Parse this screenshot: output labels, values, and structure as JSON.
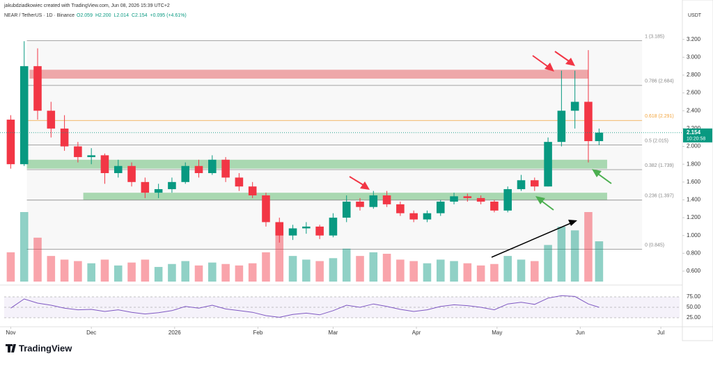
{
  "chart_data": {
    "type": "candlestick",
    "credit": "jakubdziadkowiec created with TradingView.com, Jun 08, 2026 15:39 UTC+2",
    "symbol": "NEAR / TetherUS · 1D · Binance",
    "legend_values": [
      "O2.059",
      "H2.200",
      "L2.014",
      "C2.154",
      "+0.095 (+4.61%)"
    ],
    "currency": "USDT",
    "brand": "TradingView",
    "up_color": "#089981",
    "down_color": "#f23645",
    "x": [
      0,
      5,
      10,
      15,
      20,
      25,
      30,
      35,
      40,
      45,
      50,
      55,
      60,
      65,
      70,
      75,
      80,
      85,
      90,
      95,
      100,
      105,
      110,
      115,
      120,
      125,
      130,
      135,
      140,
      145,
      150,
      155,
      160,
      165,
      170,
      175,
      180,
      185,
      190,
      195,
      200,
      205,
      210,
      215,
      219
    ],
    "open": [
      2.3,
      1.8,
      2.9,
      2.4,
      2.2,
      2.0,
      1.88,
      1.9,
      1.7,
      1.78,
      1.6,
      1.48,
      1.52,
      1.6,
      1.78,
      1.7,
      1.85,
      1.65,
      1.55,
      1.45,
      1.15,
      1.0,
      1.08,
      1.1,
      1.0,
      1.2,
      1.38,
      1.32,
      1.45,
      1.35,
      1.25,
      1.18,
      1.25,
      1.38,
      1.44,
      1.42,
      1.38,
      1.28,
      1.52,
      1.62,
      1.55,
      2.05,
      2.4,
      2.5,
      2.059
    ],
    "high": [
      2.35,
      3.18,
      3.1,
      2.5,
      2.35,
      2.05,
      1.98,
      1.92,
      1.85,
      1.82,
      1.65,
      1.58,
      1.65,
      1.82,
      1.85,
      1.9,
      1.88,
      1.7,
      1.6,
      1.48,
      1.2,
      1.12,
      1.15,
      1.12,
      1.25,
      1.45,
      1.42,
      1.5,
      1.5,
      1.38,
      1.28,
      1.28,
      1.4,
      1.48,
      1.47,
      1.45,
      1.4,
      1.55,
      1.68,
      1.65,
      2.1,
      2.85,
      2.85,
      3.08,
      2.2
    ],
    "low": [
      1.75,
      1.78,
      2.3,
      2.1,
      1.95,
      1.82,
      1.8,
      1.58,
      1.65,
      1.55,
      1.42,
      1.42,
      1.48,
      1.58,
      1.65,
      1.68,
      1.6,
      1.5,
      1.42,
      1.1,
      0.92,
      0.95,
      1.02,
      0.96,
      0.98,
      1.15,
      1.28,
      1.3,
      1.32,
      1.22,
      1.15,
      1.15,
      1.22,
      1.35,
      1.38,
      1.35,
      1.26,
      1.26,
      1.5,
      1.5,
      1.55,
      2.0,
      2.2,
      1.82,
      2.014
    ],
    "close": [
      1.8,
      2.9,
      2.4,
      2.2,
      2.0,
      1.88,
      1.9,
      1.7,
      1.78,
      1.6,
      1.48,
      1.52,
      1.6,
      1.78,
      1.7,
      1.85,
      1.65,
      1.55,
      1.45,
      1.15,
      1.0,
      1.08,
      1.1,
      1.0,
      1.2,
      1.38,
      1.32,
      1.45,
      1.35,
      1.25,
      1.18,
      1.25,
      1.38,
      1.44,
      1.42,
      1.38,
      1.28,
      1.52,
      1.62,
      1.55,
      2.05,
      2.4,
      2.5,
      2.059,
      2.154
    ],
    "volume": [
      40,
      95,
      60,
      35,
      30,
      28,
      25,
      30,
      22,
      26,
      30,
      20,
      24,
      28,
      22,
      26,
      24,
      22,
      25,
      40,
      70,
      35,
      30,
      28,
      32,
      45,
      35,
      40,
      38,
      30,
      28,
      25,
      30,
      28,
      25,
      22,
      24,
      35,
      30,
      28,
      50,
      75,
      70,
      95,
      55
    ],
    "rsi": [
      48,
      70,
      60,
      55,
      48,
      44,
      45,
      40,
      44,
      38,
      34,
      37,
      42,
      52,
      48,
      55,
      46,
      42,
      38,
      30,
      26,
      33,
      36,
      32,
      42,
      55,
      50,
      58,
      52,
      45,
      40,
      44,
      52,
      56,
      54,
      50,
      44,
      58,
      62,
      57,
      72,
      78,
      76,
      58,
      50
    ],
    "xlim": [
      -4,
      250
    ],
    "xticks": [
      {
        "value": 0,
        "label": "Nov"
      },
      {
        "value": 30,
        "label": "Dec"
      },
      {
        "value": 61,
        "label": "2026"
      },
      {
        "value": 92,
        "label": "Feb"
      },
      {
        "value": 120,
        "label": "Mar"
      },
      {
        "value": 151,
        "label": "Apr"
      },
      {
        "value": 181,
        "label": "May"
      },
      {
        "value": 212,
        "label": "Jun"
      },
      {
        "value": 242,
        "label": "Jul"
      }
    ],
    "ylim": [
      0.483,
      3.385
    ],
    "yticks": [
      {
        "value": 0.6,
        "label": "0.600"
      },
      {
        "value": 0.8,
        "label": "0.800"
      },
      {
        "value": 1.0,
        "label": "1.000"
      },
      {
        "value": 1.2,
        "label": "1.200"
      },
      {
        "value": 1.4,
        "label": "1.400"
      },
      {
        "value": 1.6,
        "label": "1.600"
      },
      {
        "value": 1.8,
        "label": "1.800"
      },
      {
        "value": 2.0,
        "label": "2.000"
      },
      {
        "value": 2.2,
        "label": "2.200"
      },
      {
        "value": 2.4,
        "label": "2.400"
      },
      {
        "value": 2.6,
        "label": "2.600"
      },
      {
        "value": 2.8,
        "label": "2.800"
      },
      {
        "value": 3.0,
        "label": "3.000"
      },
      {
        "value": 3.2,
        "label": "3.200"
      }
    ],
    "rsi_ylim": [
      20,
      80
    ],
    "rsi_yticks": [
      {
        "value": 75,
        "label": "75.00"
      },
      {
        "value": 50,
        "label": "50.00"
      },
      {
        "value": 25,
        "label": "25.00"
      }
    ],
    "fib_levels": [
      {
        "value": 3.185,
        "label": "1 (3.185)",
        "color": "#888888"
      },
      {
        "value": 2.684,
        "label": "0.786 (2.684)",
        "color": "#888888"
      },
      {
        "value": 2.291,
        "label": "0.618 (2.291)",
        "color": "#f2a33a"
      },
      {
        "value": 2.015,
        "label": "0.5 (2.015)",
        "color": "#888888"
      },
      {
        "value": 1.739,
        "label": "0.382 (1.739)",
        "color": "#888888"
      },
      {
        "value": 1.397,
        "label": "0.236 (1.397)",
        "color": "#888888"
      },
      {
        "value": 0.845,
        "label": "0 (0.845)",
        "color": "#888888"
      }
    ],
    "zones": [
      {
        "from": 2.76,
        "to": 2.86,
        "start": 7,
        "end": 215,
        "color": "#f28b8f"
      },
      {
        "from": 1.75,
        "to": 1.85,
        "start": 6,
        "end": 222,
        "color": "#8fd19a"
      },
      {
        "from": 1.4,
        "to": 1.48,
        "start": 27,
        "end": 222,
        "color": "#8fd19a"
      }
    ],
    "last_price": {
      "value": 2.154,
      "label": "2.154"
    },
    "countdown": "10:20:58"
  }
}
